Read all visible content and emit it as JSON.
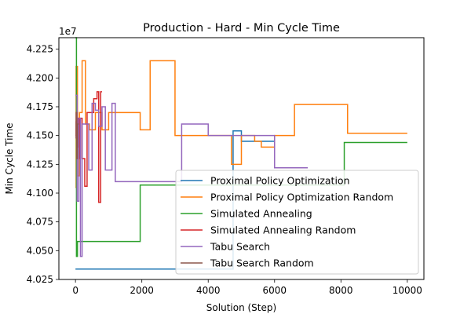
{
  "chart_data": {
    "type": "line",
    "title": "Production - Hard - Min Cycle Time",
    "xlabel": "Solution (Step)",
    "ylabel": "Min Cycle Time",
    "y_offset_label": "1e7",
    "xlim": [
      -500,
      10500
    ],
    "ylim": [
      40250000,
      42350000
    ],
    "x_ticks": [
      0,
      2000,
      4000,
      6000,
      8000,
      10000
    ],
    "x_tick_labels": [
      "0",
      "2000",
      "4000",
      "6000",
      "8000",
      "10000"
    ],
    "y_ticks": [
      40250000,
      40500000,
      40750000,
      41000000,
      41250000,
      41500000,
      41750000,
      42000000,
      42250000
    ],
    "y_tick_labels": [
      "4.025",
      "4.050",
      "4.075",
      "4.100",
      "4.125",
      "4.150",
      "4.175",
      "4.200",
      "4.225"
    ],
    "grid": false,
    "legend_position": "lower-right",
    "series": [
      {
        "name": "Proximal Policy Optimization",
        "color": "#1f77b4",
        "step": true,
        "x": [
          0,
          4700,
          4750,
          4780,
          5000,
          5200,
          6000
        ],
        "y": [
          40340000,
          40340000,
          41540000,
          41540000,
          41450000,
          41450000,
          41450000
        ]
      },
      {
        "name": "Proximal Policy Optimization Random",
        "color": "#ff7f0e",
        "step": true,
        "x": [
          0,
          20,
          60,
          120,
          200,
          300,
          420,
          600,
          800,
          1000,
          1400,
          1950,
          2250,
          3000,
          4000,
          4400,
          4600,
          4700,
          5000,
          5400,
          5600,
          6000,
          6600,
          7000,
          8200,
          10000
        ],
        "y": [
          41050000,
          42100000,
          41150000,
          41700000,
          42150000,
          41600000,
          41550000,
          41700000,
          41550000,
          41700000,
          41700000,
          41550000,
          42150000,
          41500000,
          41500000,
          41500000,
          41500000,
          41250000,
          41500000,
          41450000,
          41400000,
          41500000,
          41770000,
          41770000,
          41520000,
          41520000
        ]
      },
      {
        "name": "Simulated Annealing",
        "color": "#2ca02c",
        "step": true,
        "x": [
          0,
          30,
          60,
          150,
          1000,
          1950,
          4000,
          4700,
          5000,
          6000,
          7000,
          8000,
          8100,
          10000
        ],
        "y": [
          42350000,
          40450000,
          40580000,
          40580000,
          40580000,
          41070000,
          41070000,
          41070000,
          41070000,
          41070000,
          41070000,
          41070000,
          41440000,
          41440000
        ]
      },
      {
        "name": "Simulated Annealing Random",
        "color": "#d62728",
        "step": true,
        "x": [
          0,
          20,
          50,
          80,
          120,
          150,
          200,
          280,
          350,
          450,
          550,
          650,
          700,
          760,
          800
        ],
        "y": [
          41500000,
          41620000,
          41400000,
          41650000,
          41300000,
          41650000,
          41300000,
          41060000,
          41700000,
          41700000,
          41820000,
          41880000,
          40920000,
          41880000,
          41880000
        ]
      },
      {
        "name": "Tabu Search",
        "color": "#9467bd",
        "step": true,
        "x": [
          0,
          50,
          100,
          150,
          200,
          300,
          400,
          500,
          600,
          700,
          800,
          900,
          1000,
          1100,
          1200,
          2000,
          3000,
          3200,
          4000,
          5000,
          6000,
          6600,
          7000
        ],
        "y": [
          41850000,
          40930000,
          41650000,
          40450000,
          41600000,
          41600000,
          41200000,
          41780000,
          41720000,
          41580000,
          41750000,
          41200000,
          41200000,
          41780000,
          41100000,
          41100000,
          41100000,
          41600000,
          41500000,
          41500000,
          41220000,
          41220000,
          41220000
        ]
      },
      {
        "name": "Tabu Search Random",
        "color": "#8c564b",
        "step": true,
        "x": [
          0,
          20,
          40,
          60,
          100
        ],
        "y": [
          41480000,
          41700000,
          41300000,
          41600000,
          41600000
        ]
      }
    ]
  }
}
